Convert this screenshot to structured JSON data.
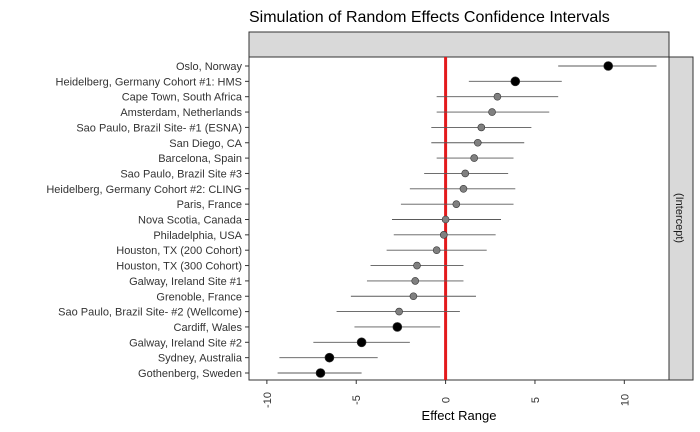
{
  "chart_data": {
    "type": "scatter",
    "title": "Simulation of Random Effects Confidence Intervals",
    "xlabel": "Effect Range",
    "ylabel": "",
    "strip_label": "(Intercept)",
    "xlim": [
      -11,
      12.5
    ],
    "x_ticks": [
      -10,
      -5,
      0,
      5,
      10
    ],
    "x_tick_labels": [
      "-10",
      "-5",
      "0",
      "5",
      "10"
    ],
    "reference_line": {
      "x": 0,
      "color": "#e31a1c"
    },
    "colors": {
      "significant": "#000000",
      "nonsignificant": "#808080",
      "interval": "#5a5a5a"
    },
    "grid": false,
    "points": [
      {
        "label": "Oslo, Norway",
        "estimate": 9.1,
        "lower": 6.3,
        "upper": 11.8,
        "significant": true
      },
      {
        "label": "Heidelberg, Germany Cohort #1: HMS",
        "estimate": 3.9,
        "lower": 1.3,
        "upper": 6.5,
        "significant": true
      },
      {
        "label": "Cape Town, South Africa",
        "estimate": 2.9,
        "lower": -0.5,
        "upper": 6.3,
        "significant": false
      },
      {
        "label": "Amsterdam, Netherlands",
        "estimate": 2.6,
        "lower": -0.5,
        "upper": 5.8,
        "significant": false
      },
      {
        "label": "Sao Paulo, Brazil Site- #1 (ESNA)",
        "estimate": 2.0,
        "lower": -0.8,
        "upper": 4.8,
        "significant": false
      },
      {
        "label": "San Diego, CA",
        "estimate": 1.8,
        "lower": -0.8,
        "upper": 4.4,
        "significant": false
      },
      {
        "label": "Barcelona, Spain",
        "estimate": 1.6,
        "lower": -0.5,
        "upper": 3.8,
        "significant": false
      },
      {
        "label": "Sao Paulo, Brazil Site #3",
        "estimate": 1.1,
        "lower": -1.2,
        "upper": 3.5,
        "significant": false
      },
      {
        "label": "Heidelberg, Germany Cohort #2: CLING",
        "estimate": 1.0,
        "lower": -2.0,
        "upper": 3.9,
        "significant": false
      },
      {
        "label": "Paris, France",
        "estimate": 0.6,
        "lower": -2.5,
        "upper": 3.8,
        "significant": false
      },
      {
        "label": "Nova Scotia, Canada",
        "estimate": 0.0,
        "lower": -3.0,
        "upper": 3.1,
        "significant": false
      },
      {
        "label": "Philadelphia, USA",
        "estimate": -0.1,
        "lower": -2.9,
        "upper": 2.8,
        "significant": false
      },
      {
        "label": "Houston, TX (200 Cohort)",
        "estimate": -0.5,
        "lower": -3.3,
        "upper": 2.3,
        "significant": false
      },
      {
        "label": "Houston, TX (300 Cohort)",
        "estimate": -1.6,
        "lower": -4.2,
        "upper": 1.0,
        "significant": false
      },
      {
        "label": "Galway, Ireland Site #1",
        "estimate": -1.7,
        "lower": -4.4,
        "upper": 1.0,
        "significant": false
      },
      {
        "label": "Grenoble, France",
        "estimate": -1.8,
        "lower": -5.3,
        "upper": 1.7,
        "significant": false
      },
      {
        "label": "Sao Paulo, Brazil Site- #2 (Wellcome)",
        "estimate": -2.6,
        "lower": -6.1,
        "upper": 0.8,
        "significant": false
      },
      {
        "label": "Cardiff, Wales",
        "estimate": -2.7,
        "lower": -5.1,
        "upper": -0.3,
        "significant": true
      },
      {
        "label": "Galway, Ireland Site #2",
        "estimate": -4.7,
        "lower": -7.4,
        "upper": -2.0,
        "significant": true
      },
      {
        "label": "Sydney, Australia",
        "estimate": -6.5,
        "lower": -9.3,
        "upper": -3.8,
        "significant": true
      },
      {
        "label": "Gothenberg, Sweden",
        "estimate": -7.0,
        "lower": -9.4,
        "upper": -4.7,
        "significant": true
      }
    ]
  }
}
